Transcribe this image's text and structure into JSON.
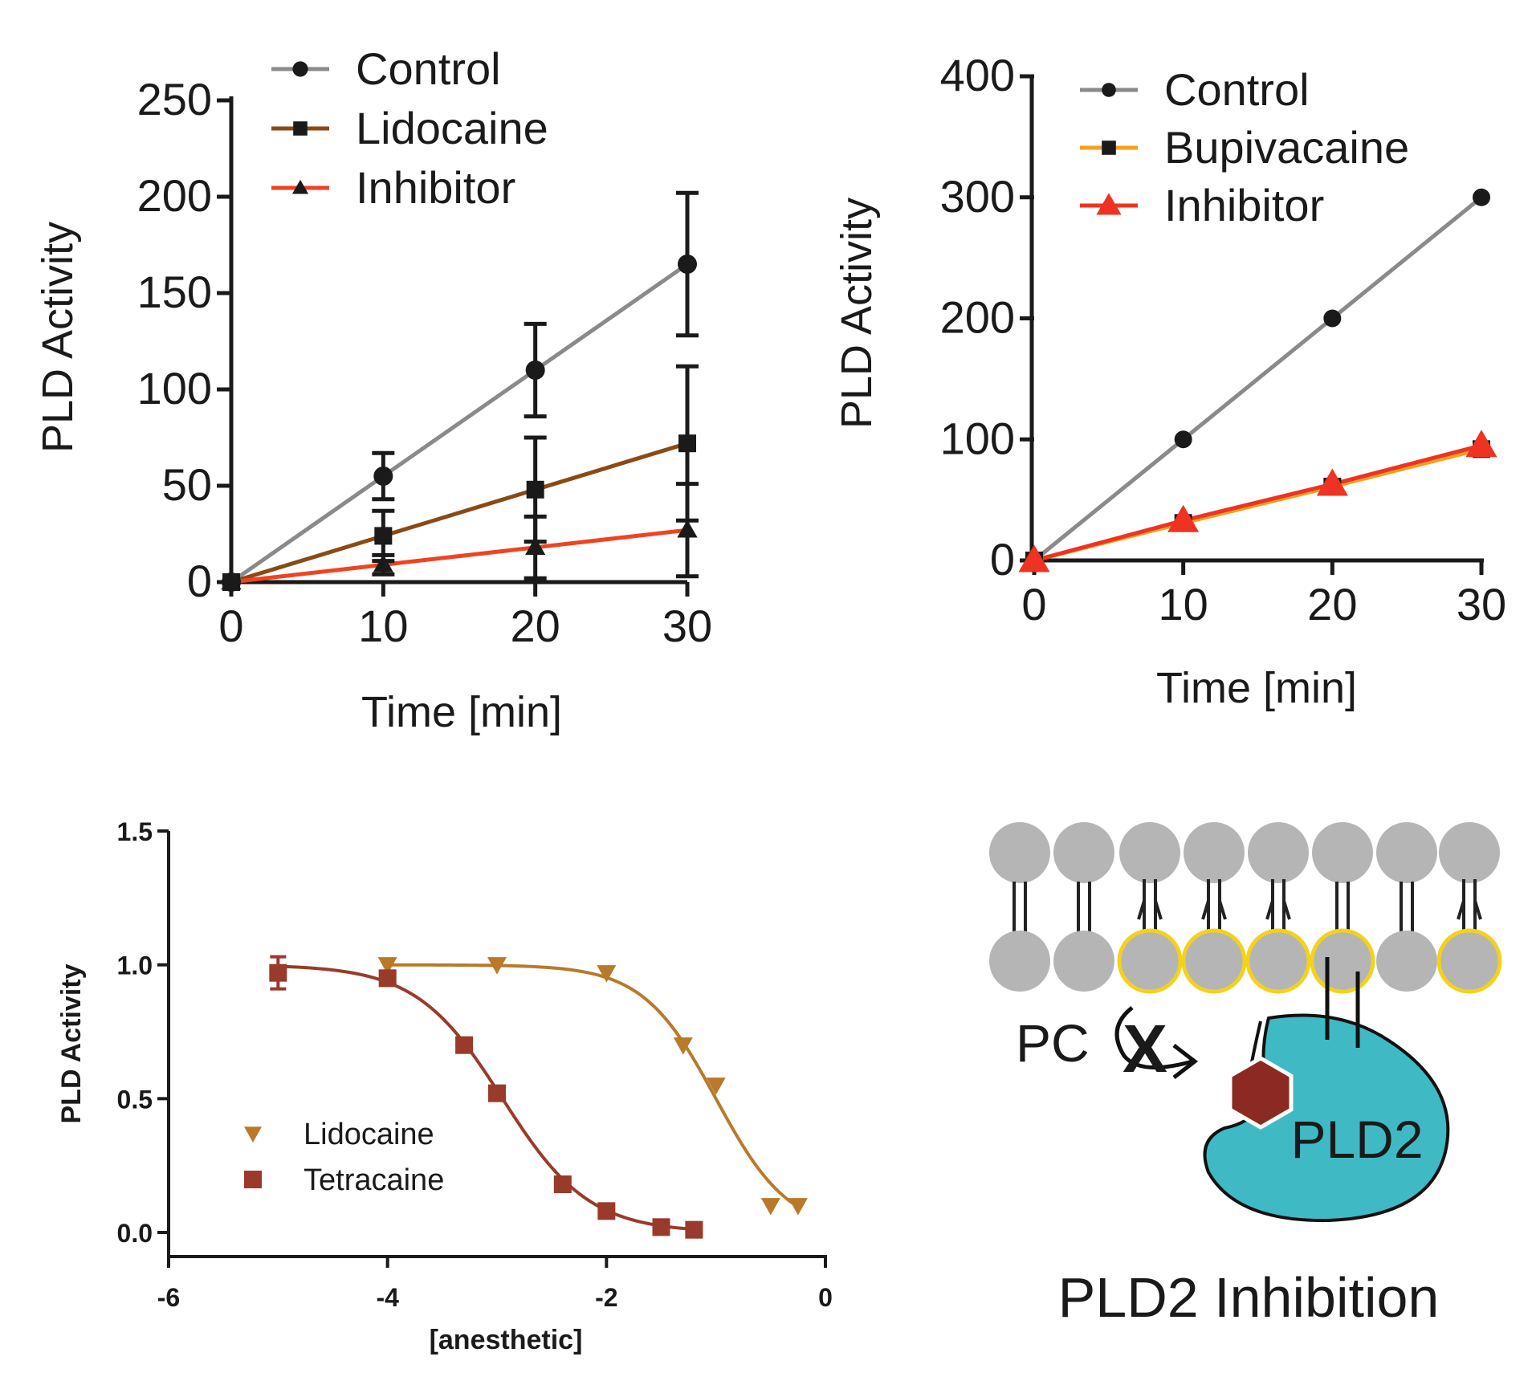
{
  "chart_data": [
    {
      "type": "line",
      "title": "",
      "xlabel": "Time [min]",
      "ylabel": "PLD Activity",
      "xlim": [
        0,
        30
      ],
      "ylim": [
        0,
        250
      ],
      "xticks": [
        "0",
        "10",
        "20",
        "30"
      ],
      "yticks": [
        "0",
        "50",
        "100",
        "150",
        "200",
        "250"
      ],
      "legend_position": "top",
      "x": [
        0,
        10,
        20,
        30
      ],
      "series": [
        {
          "name": "Control",
          "values": [
            0,
            55,
            110,
            165
          ],
          "errors": [
            0,
            12,
            24,
            37
          ],
          "color": "#8a8a8a",
          "marker": "circle"
        },
        {
          "name": "Lidocaine",
          "values": [
            0,
            24,
            48,
            72
          ],
          "errors": [
            0,
            13,
            27,
            40
          ],
          "color": "#8b4a14",
          "marker": "square"
        },
        {
          "name": "Inhibitor",
          "values": [
            0,
            9,
            18,
            27
          ],
          "errors": [
            0,
            5,
            16,
            24
          ],
          "color": "#ee4422",
          "marker": "triangle"
        }
      ]
    },
    {
      "type": "line",
      "title": "",
      "xlabel": "Time [min]",
      "ylabel": "PLD Activity",
      "xlim": [
        0,
        30
      ],
      "ylim": [
        0,
        400
      ],
      "xticks": [
        "0",
        "10",
        "20",
        "30"
      ],
      "yticks": [
        "0",
        "100",
        "200",
        "300",
        "400"
      ],
      "legend_position": "top",
      "x": [
        0,
        10,
        20,
        30
      ],
      "series": [
        {
          "name": "Control",
          "values": [
            0,
            100,
            200,
            300
          ],
          "color": "#8a8a8a",
          "marker": "circle"
        },
        {
          "name": "Bupivacaine",
          "values": [
            0,
            31,
            61,
            92
          ],
          "color": "#f5a020",
          "marker": "square"
        },
        {
          "name": "Inhibitor",
          "values": [
            0,
            33,
            63,
            95
          ],
          "color": "#ee3322",
          "marker": "triangle"
        }
      ]
    },
    {
      "type": "scatter",
      "title": "",
      "xlabel": "[anesthetic]",
      "ylabel": "PLD Activity",
      "xlim": [
        -6,
        0
      ],
      "ylim": [
        0,
        1.5
      ],
      "xticks": [
        "-6",
        "-4",
        "-2",
        "0"
      ],
      "yticks": [
        "0.0",
        "0.5",
        "1.0",
        "1.5"
      ],
      "legend_position": "bottom-left",
      "series": [
        {
          "name": "Lidocaine",
          "x": [
            -4,
            -3,
            -2,
            -1.3,
            -1,
            -0.5,
            -0.25
          ],
          "values": [
            1.0,
            1.0,
            0.97,
            0.7,
            0.55,
            0.1,
            0.1
          ],
          "color": "#b87a2a",
          "marker": "triangle-down",
          "fit_ic50_log": -1.0,
          "fit_hill": 1.3
        },
        {
          "name": "Tetracaine",
          "x": [
            -5,
            -4,
            -3.3,
            -3,
            -2.4,
            -2,
            -1.5,
            -1.2
          ],
          "values": [
            0.97,
            0.95,
            0.7,
            0.52,
            0.18,
            0.08,
            0.02,
            0.01
          ],
          "color": "#9a3a2a",
          "marker": "square",
          "fit_ic50_log": -2.95,
          "fit_hill": 1.1
        }
      ]
    }
  ],
  "diagram": {
    "labels": {
      "substrate": "PC",
      "block_mark": "X",
      "enzyme": "PLD2",
      "caption": "PLD2 Inhibition"
    },
    "colors": {
      "lipid_head": "#b5b5b5",
      "highlight_ring": "#f2d21c",
      "enzyme": "#3fbac4",
      "inhibitor": "#8a2a22",
      "caption": "#a33a28"
    }
  }
}
